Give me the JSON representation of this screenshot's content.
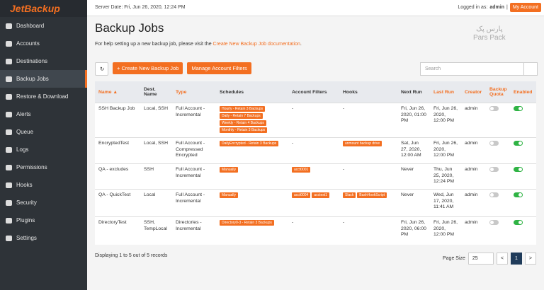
{
  "sidebar": {
    "logo": "JetBackup",
    "nav": [
      "Dashboard",
      "Accounts",
      "Destinations",
      "Backup Jobs",
      "Restore & Download",
      "Alerts",
      "Queue",
      "Logs",
      "Permissions",
      "Hooks",
      "Security",
      "Plugins",
      "Settings"
    ],
    "active": 3
  },
  "topbar": {
    "server_date": "Server Date: Fri, Jun 26, 2020, 12:24 PM",
    "logged_in": "Logged in as:",
    "user": "admin",
    "separator": "|",
    "account_button": "My Account"
  },
  "header": {
    "title": "Backup Jobs",
    "help_text": "For help setting up a new backup job, please visit the ",
    "help_link": "Create New Backup Job documentation",
    "help_end": "."
  },
  "watermark": {
    "native": "پارس پک",
    "latin": "Pars Pack"
  },
  "toolbar": {
    "create": "Create New Backup Job",
    "create_icon": "+",
    "manage": "Manage Account Filters",
    "search_placeholder": "Search"
  },
  "table": {
    "columns": [
      {
        "label": "Name",
        "sortable": true,
        "sort": "▲"
      },
      {
        "label": "Dest. Name",
        "sortable": false
      },
      {
        "label": "Type",
        "sortable": true
      },
      {
        "label": "Schedules",
        "sortable": false
      },
      {
        "label": "Account Filters",
        "sortable": false
      },
      {
        "label": "Hooks",
        "sortable": false
      },
      {
        "label": "Next Run",
        "sortable": false
      },
      {
        "label": "Last Run",
        "sortable": true
      },
      {
        "label": "Creator",
        "sortable": true
      },
      {
        "label": "Backup Quota",
        "sortable": true
      },
      {
        "label": "Enabled",
        "sortable": true
      }
    ],
    "rows": [
      {
        "name": "SSH Backup Job",
        "dest": "Local, SSH",
        "type": "Full Account - Incremental",
        "schedules": [
          "Hourly - Retain 3 Backups",
          "Daily - Retain 7 Backups",
          "Weekly - Retain 4 Backups",
          "Monthly - Retain 3 Backups"
        ],
        "filters": "-",
        "hooks": "-",
        "next_run": "Fri, Jun 26, 2020, 01:00 PM",
        "last_run": "Fri, Jun 26, 2020, 12:00 PM",
        "creator": "admin",
        "quota": false,
        "enabled": true
      },
      {
        "name": "EncryptedTest",
        "dest": "Local, SSH",
        "type": "Full Account - Compressed Encrypted",
        "schedules": [
          "DailyEncrypted - Retain 3 Backups"
        ],
        "filters": "-",
        "hooks": [
          "unmount backup drive"
        ],
        "next_run": "Sat, Jun 27, 2020, 12:00 AM",
        "last_run": "Fri, Jun 26, 2020, 12:00 PM",
        "creator": "admin",
        "quota": false,
        "enabled": true
      },
      {
        "name": "QA - excludes",
        "dest": "SSH",
        "type": "Full Account - Incremental",
        "schedules": [
          "Manually"
        ],
        "filters": [
          "acct0001"
        ],
        "hooks": "-",
        "next_run": "Never",
        "last_run": "Thu, Jun 25, 2020, 12:24 PM",
        "creator": "admin",
        "quota": false,
        "enabled": true
      },
      {
        "name": "QA - QuickTest",
        "dest": "Local",
        "type": "Full Account - Incremental",
        "schedules": [
          "Manually"
        ],
        "filters": [
          "acct0004",
          "acctest1"
        ],
        "hooks": [
          "Slack",
          "BashHookScript"
        ],
        "next_run": "Never",
        "last_run": "Wed, Jun 17, 2020, 11:41 AM",
        "creator": "admin",
        "quota": false,
        "enabled": true
      },
      {
        "name": "DirectoryTest",
        "dest": "SSH, TempLocal",
        "type": "Directories - Incremental",
        "schedules": [
          "Directory0-3 - Retain 3 Backups"
        ],
        "filters": "-",
        "hooks": "-",
        "next_run": "Fri, Jun 26, 2020, 06:00 PM",
        "last_run": "Fri, Jun 26, 2020, 12:00 PM",
        "creator": "admin",
        "quota": false,
        "enabled": true
      }
    ]
  },
  "footer": {
    "records": "Displaying 1 to 5 out of 5 records",
    "page_size_label": "Page Size",
    "page_size": "25",
    "prev": "<",
    "page": "1",
    "next": ">"
  }
}
